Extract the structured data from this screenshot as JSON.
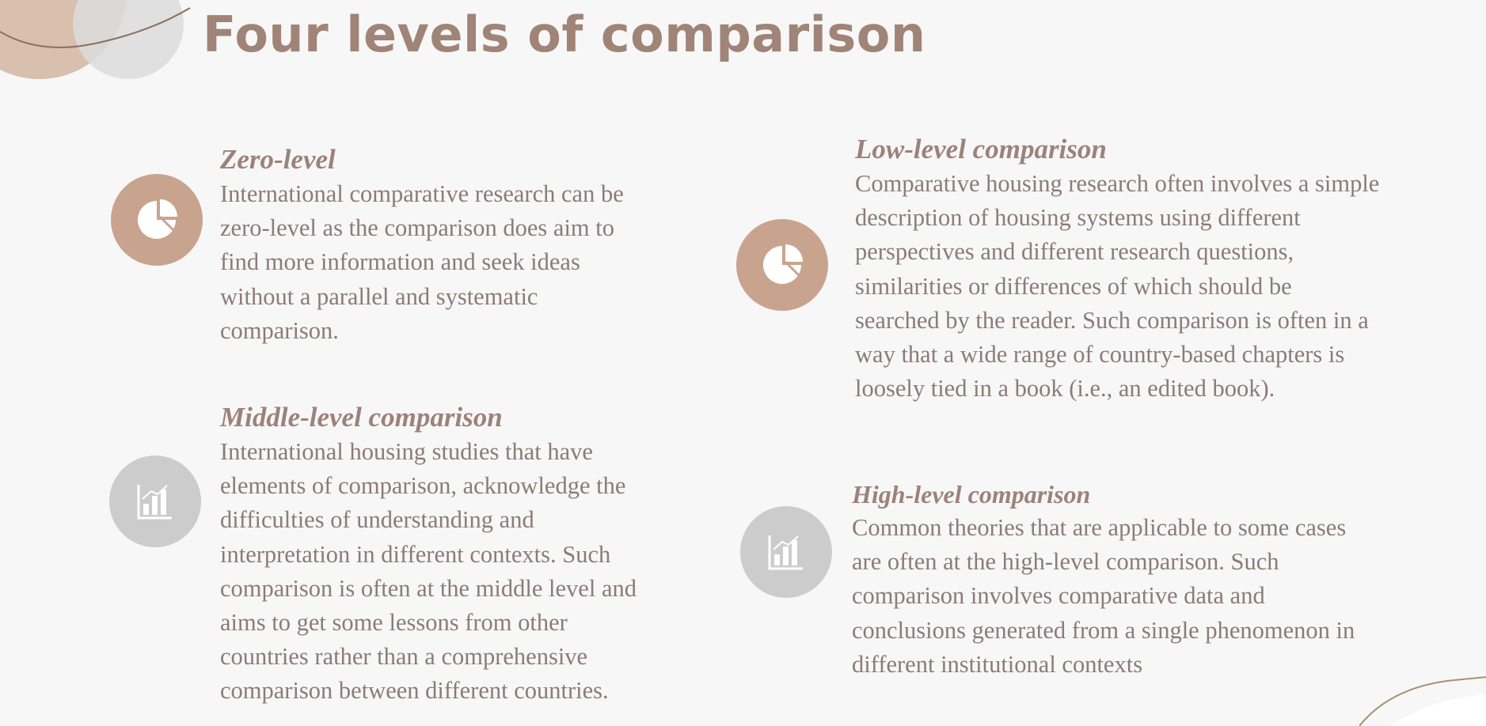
{
  "title": "Four levels of comparison",
  "colors": {
    "title": "#a08478",
    "heading": "#9c827b",
    "body_text": "#8c7b77",
    "icon_tan": "#c8a48e",
    "icon_gray": "#cccccc",
    "background": "#f7f7f7"
  },
  "blocks": {
    "zero": {
      "heading": "Zero-level",
      "icon": "pie-chart-icon",
      "lines": [
        "International comparative research can be",
        "zero-level as the comparison does aim to",
        "find more information and seek ideas",
        "without a parallel and systematic",
        "comparison."
      ]
    },
    "low": {
      "heading": "Low-level comparison",
      "icon": "pie-chart-icon",
      "lines": [
        "Comparative housing research often involves a simple",
        "description of housing systems using different",
        "perspectives and different research questions,",
        "similarities or differences of which should be",
        "searched by the reader. Such comparison is often in a",
        "way that a wide range of country-based chapters is",
        "loosely tied in a book (i.e., an edited book)."
      ]
    },
    "middle": {
      "heading": "Middle-level comparison",
      "icon": "bar-chart-icon",
      "lines": [
        "International housing studies that have",
        "elements of comparison, acknowledge the",
        "difficulties of understanding and",
        "interpretation in different contexts. Such",
        "comparison is often at the middle level and",
        "aims to get some lessons from other",
        "countries rather than a comprehensive",
        "comparison between different countries."
      ]
    },
    "high": {
      "heading": "High-level comparison",
      "icon": "bar-chart-icon",
      "lines": [
        "Common theories that are applicable to some cases",
        "are often at the high-level comparison. Such",
        "comparison involves comparative data and",
        "conclusions generated from a single phenomenon in",
        "different institutional contexts"
      ]
    }
  }
}
